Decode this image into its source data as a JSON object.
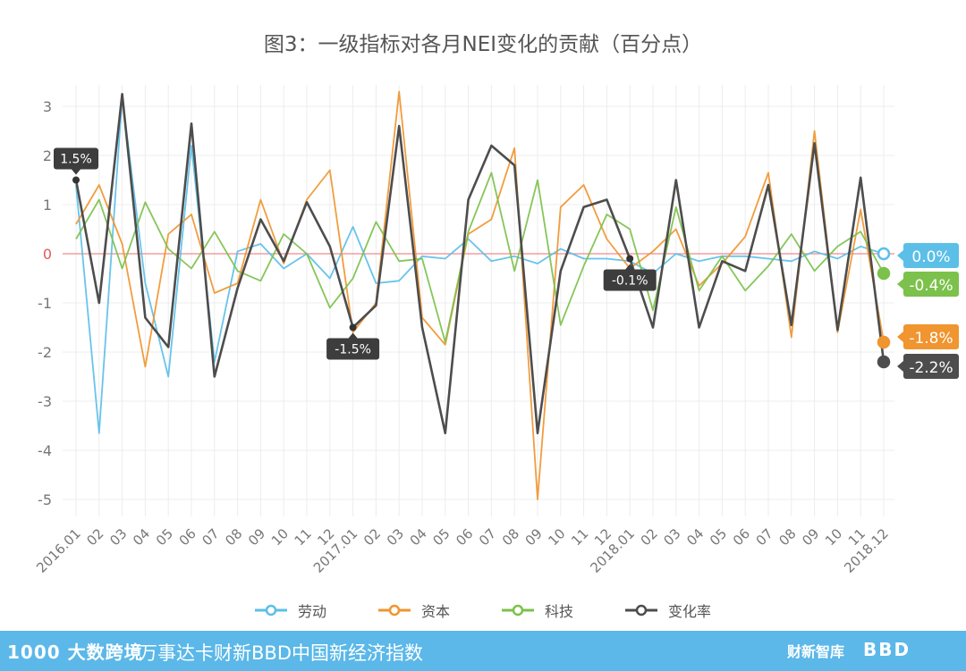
{
  "title": "图3：一级指标对各月NEI变化的贡献（百分点）",
  "footer": {
    "logo": "1000 大数跨境",
    "index_name": "万事达卡财新BBD中国新经济指数",
    "brand": "财新智库",
    "brand2": "BBD"
  },
  "chart_data": {
    "type": "line",
    "title": "图3：一级指标对各月NEI变化的贡献（百分点）",
    "xlabel": "",
    "ylabel": "",
    "ylim": [
      -5,
      3
    ],
    "yticks": [
      3,
      2,
      1,
      0,
      -1,
      -2,
      -3,
      -4,
      -5
    ],
    "grid": true,
    "legend_position": "bottom",
    "categories": [
      "2016.01",
      "02",
      "03",
      "04",
      "05",
      "06",
      "07",
      "08",
      "09",
      "10",
      "11",
      "12",
      "2017.01",
      "02",
      "03",
      "04",
      "05",
      "06",
      "07",
      "08",
      "09",
      "10",
      "11",
      "12",
      "2018.01",
      "02",
      "03",
      "04",
      "05",
      "06",
      "07",
      "08",
      "09",
      "10",
      "11",
      "2018.12"
    ],
    "series": [
      {
        "name": "劳动",
        "color": "#5bbfe8",
        "values": [
          1.4,
          -3.65,
          3.2,
          -0.6,
          -2.5,
          2.2,
          -2.2,
          0.05,
          0.2,
          -0.3,
          0.0,
          -0.5,
          0.55,
          -0.6,
          -0.55,
          -0.05,
          -0.1,
          0.3,
          -0.15,
          -0.05,
          -0.2,
          0.1,
          -0.1,
          -0.1,
          -0.15,
          -0.4,
          0.0,
          -0.15,
          -0.05,
          -0.05,
          -0.1,
          -0.15,
          0.05,
          -0.1,
          0.15,
          0.0
        ]
      },
      {
        "name": "资本",
        "color": "#f0952f",
        "values": [
          0.6,
          1.4,
          0.2,
          -2.3,
          0.4,
          0.8,
          -0.8,
          -0.6,
          1.1,
          -0.2,
          1.1,
          1.7,
          -1.6,
          -1.0,
          3.3,
          -1.3,
          -1.85,
          0.4,
          0.7,
          2.15,
          -5.0,
          0.95,
          1.4,
          0.3,
          -0.3,
          0.05,
          0.5,
          -0.65,
          -0.2,
          0.35,
          1.65,
          -1.7,
          2.5,
          -1.6,
          0.9,
          -1.8
        ]
      },
      {
        "name": "科技",
        "color": "#7cc14b",
        "values": [
          0.3,
          1.1,
          -0.3,
          1.05,
          0.1,
          -0.3,
          0.45,
          -0.35,
          -0.55,
          0.4,
          0.0,
          -1.1,
          -0.5,
          0.65,
          -0.15,
          -0.1,
          -1.8,
          0.45,
          1.65,
          -0.35,
          1.5,
          -1.45,
          -0.25,
          0.8,
          0.5,
          -1.15,
          0.95,
          -0.75,
          -0.05,
          -0.75,
          -0.25,
          0.4,
          -0.35,
          0.15,
          0.45,
          -0.4
        ]
      },
      {
        "name": "变化率",
        "color": "#4d4d4d",
        "values": [
          1.5,
          -1.0,
          3.25,
          -1.3,
          -1.9,
          2.65,
          -2.5,
          -0.7,
          0.7,
          -0.15,
          1.05,
          0.15,
          -1.5,
          -1.05,
          2.6,
          -1.5,
          -3.65,
          1.1,
          2.2,
          1.8,
          -3.65,
          -0.35,
          0.95,
          1.1,
          -0.1,
          -1.5,
          1.5,
          -1.5,
          -0.15,
          -0.35,
          1.4,
          -1.45,
          2.25,
          -1.55,
          1.55,
          -2.2
        ]
      }
    ],
    "callouts": [
      {
        "category": "2016.01",
        "series": "变化率",
        "text": "1.5%"
      },
      {
        "category": "2017.01",
        "series": "变化率",
        "text": "-1.5%"
      },
      {
        "category": "2018.01",
        "series": "变化率",
        "text": "-0.1%"
      }
    ],
    "end_labels": [
      {
        "series": "劳动",
        "text": "0.0%"
      },
      {
        "series": "科技",
        "text": "-0.4%"
      },
      {
        "series": "资本",
        "text": "-1.8%"
      },
      {
        "series": "变化率",
        "text": "-2.2%"
      }
    ]
  }
}
